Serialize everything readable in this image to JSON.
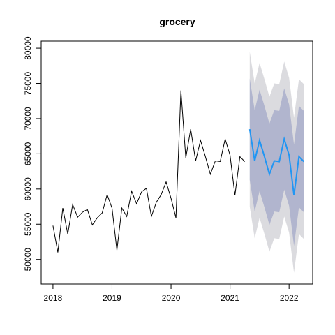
{
  "chart_data": {
    "type": "line",
    "title": "grocery",
    "xlabel": "",
    "ylabel": "",
    "xlim": [
      2017.8,
      2022.4
    ],
    "ylim": [
      46500,
      81000
    ],
    "grid": false,
    "x_ticks": [
      2018,
      2019,
      2020,
      2021,
      2022
    ],
    "x_tick_labels": [
      "2018",
      "2019",
      "2020",
      "2021",
      "2022"
    ],
    "y_ticks": [
      50000,
      55000,
      60000,
      65000,
      70000,
      75000,
      80000
    ],
    "y_tick_labels": [
      "50000",
      "55000",
      "60000",
      "65000",
      "70000",
      "75000",
      "80000"
    ],
    "series": [
      {
        "role": "observed",
        "color": "#000000",
        "x": [
          2018.0,
          2018.083,
          2018.167,
          2018.25,
          2018.333,
          2018.417,
          2018.5,
          2018.583,
          2018.667,
          2018.75,
          2018.833,
          2018.917,
          2019.0,
          2019.083,
          2019.167,
          2019.25,
          2019.333,
          2019.417,
          2019.5,
          2019.583,
          2019.667,
          2019.75,
          2019.833,
          2019.917,
          2020.0,
          2020.083,
          2020.167,
          2020.25,
          2020.333,
          2020.417,
          2020.5,
          2020.583,
          2020.667,
          2020.75,
          2020.833,
          2020.917,
          2021.0,
          2021.083,
          2021.167,
          2021.25
        ],
        "values": [
          54800,
          51000,
          57300,
          53600,
          57800,
          56000,
          56700,
          57100,
          54900,
          55900,
          56600,
          59200,
          57300,
          51300,
          57300,
          56100,
          59700,
          57900,
          59600,
          60100,
          56100,
          58100,
          59200,
          61000,
          58700,
          55900,
          74000,
          64400,
          68500,
          64000,
          66900,
          64600,
          62100,
          64000,
          63900,
          67100,
          64800,
          59100,
          64600,
          63900
        ]
      },
      {
        "role": "forecast",
        "color": "#2196F3",
        "x": [
          2021.333,
          2021.417,
          2021.5,
          2021.583,
          2021.667,
          2021.75,
          2021.833,
          2021.917,
          2022.0,
          2022.083,
          2022.167,
          2022.25
        ],
        "values": [
          68500,
          64000,
          66900,
          64600,
          62100,
          64000,
          63900,
          67100,
          64800,
          59100,
          64600,
          63900
        ],
        "lo80": [
          61300,
          56800,
          59700,
          57400,
          54900,
          56800,
          56700,
          59900,
          57600,
          51900,
          57400,
          56700
        ],
        "hi80": [
          75700,
          71200,
          74100,
          71800,
          69300,
          71200,
          71100,
          74300,
          72000,
          66300,
          71800,
          71100
        ],
        "lo95": [
          57500,
          53000,
          55900,
          53600,
          51100,
          53000,
          52900,
          56100,
          53800,
          48100,
          53600,
          52900
        ],
        "hi95": [
          79500,
          75000,
          77900,
          75600,
          73100,
          75000,
          74900,
          78100,
          75800,
          70100,
          75600,
          74900
        ]
      }
    ],
    "band_colors": {
      "pi95": "#DBDBDF",
      "pi80": "#B1B5CE"
    }
  }
}
